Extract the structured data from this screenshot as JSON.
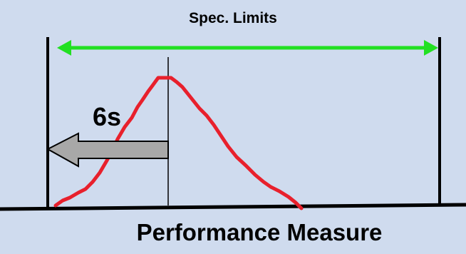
{
  "diagram": {
    "spec_limits_label": "Spec. Limits",
    "sigma_label": "6s",
    "axis_label": "Performance Measure",
    "colors": {
      "background": "#cfdbee",
      "curve": "#e8202c",
      "spec_arrow": "#22e022",
      "sigma_arrow": "#a8a8a8",
      "lines": "#000000"
    }
  }
}
